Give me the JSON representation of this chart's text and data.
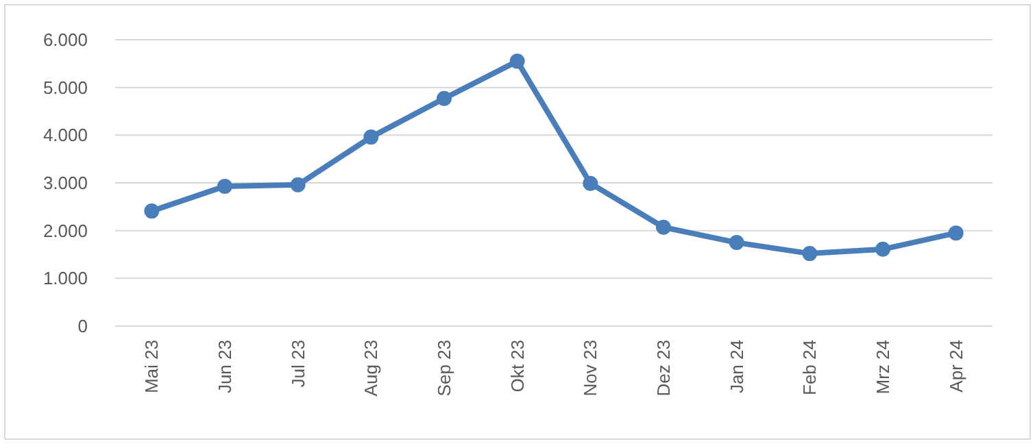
{
  "chart_data": {
    "type": "line",
    "categories": [
      "Mai 23",
      "Jun 23",
      "Jul 23",
      "Aug 23",
      "Sep 23",
      "Okt 23",
      "Nov 23",
      "Dez 23",
      "Jan 24",
      "Feb 24",
      "Mrz 24",
      "Apr 24"
    ],
    "series": [
      {
        "color": "#4a7ebb",
        "values": [
          2410,
          2930,
          2960,
          3960,
          4770,
          5550,
          2990,
          2070,
          1750,
          1520,
          1610,
          1950
        ]
      }
    ],
    "ylim": [
      0,
      6000
    ],
    "yticks": [
      {
        "value": 0,
        "label": "0"
      },
      {
        "value": 1000,
        "label": "1.000"
      },
      {
        "value": 2000,
        "label": "2.000"
      },
      {
        "value": 3000,
        "label": "3.000"
      },
      {
        "value": 4000,
        "label": "4.000"
      },
      {
        "value": 5000,
        "label": "5.000"
      },
      {
        "value": 6000,
        "label": "6.000"
      }
    ],
    "grid": "y",
    "marker": "circle",
    "line_style": "solid"
  }
}
